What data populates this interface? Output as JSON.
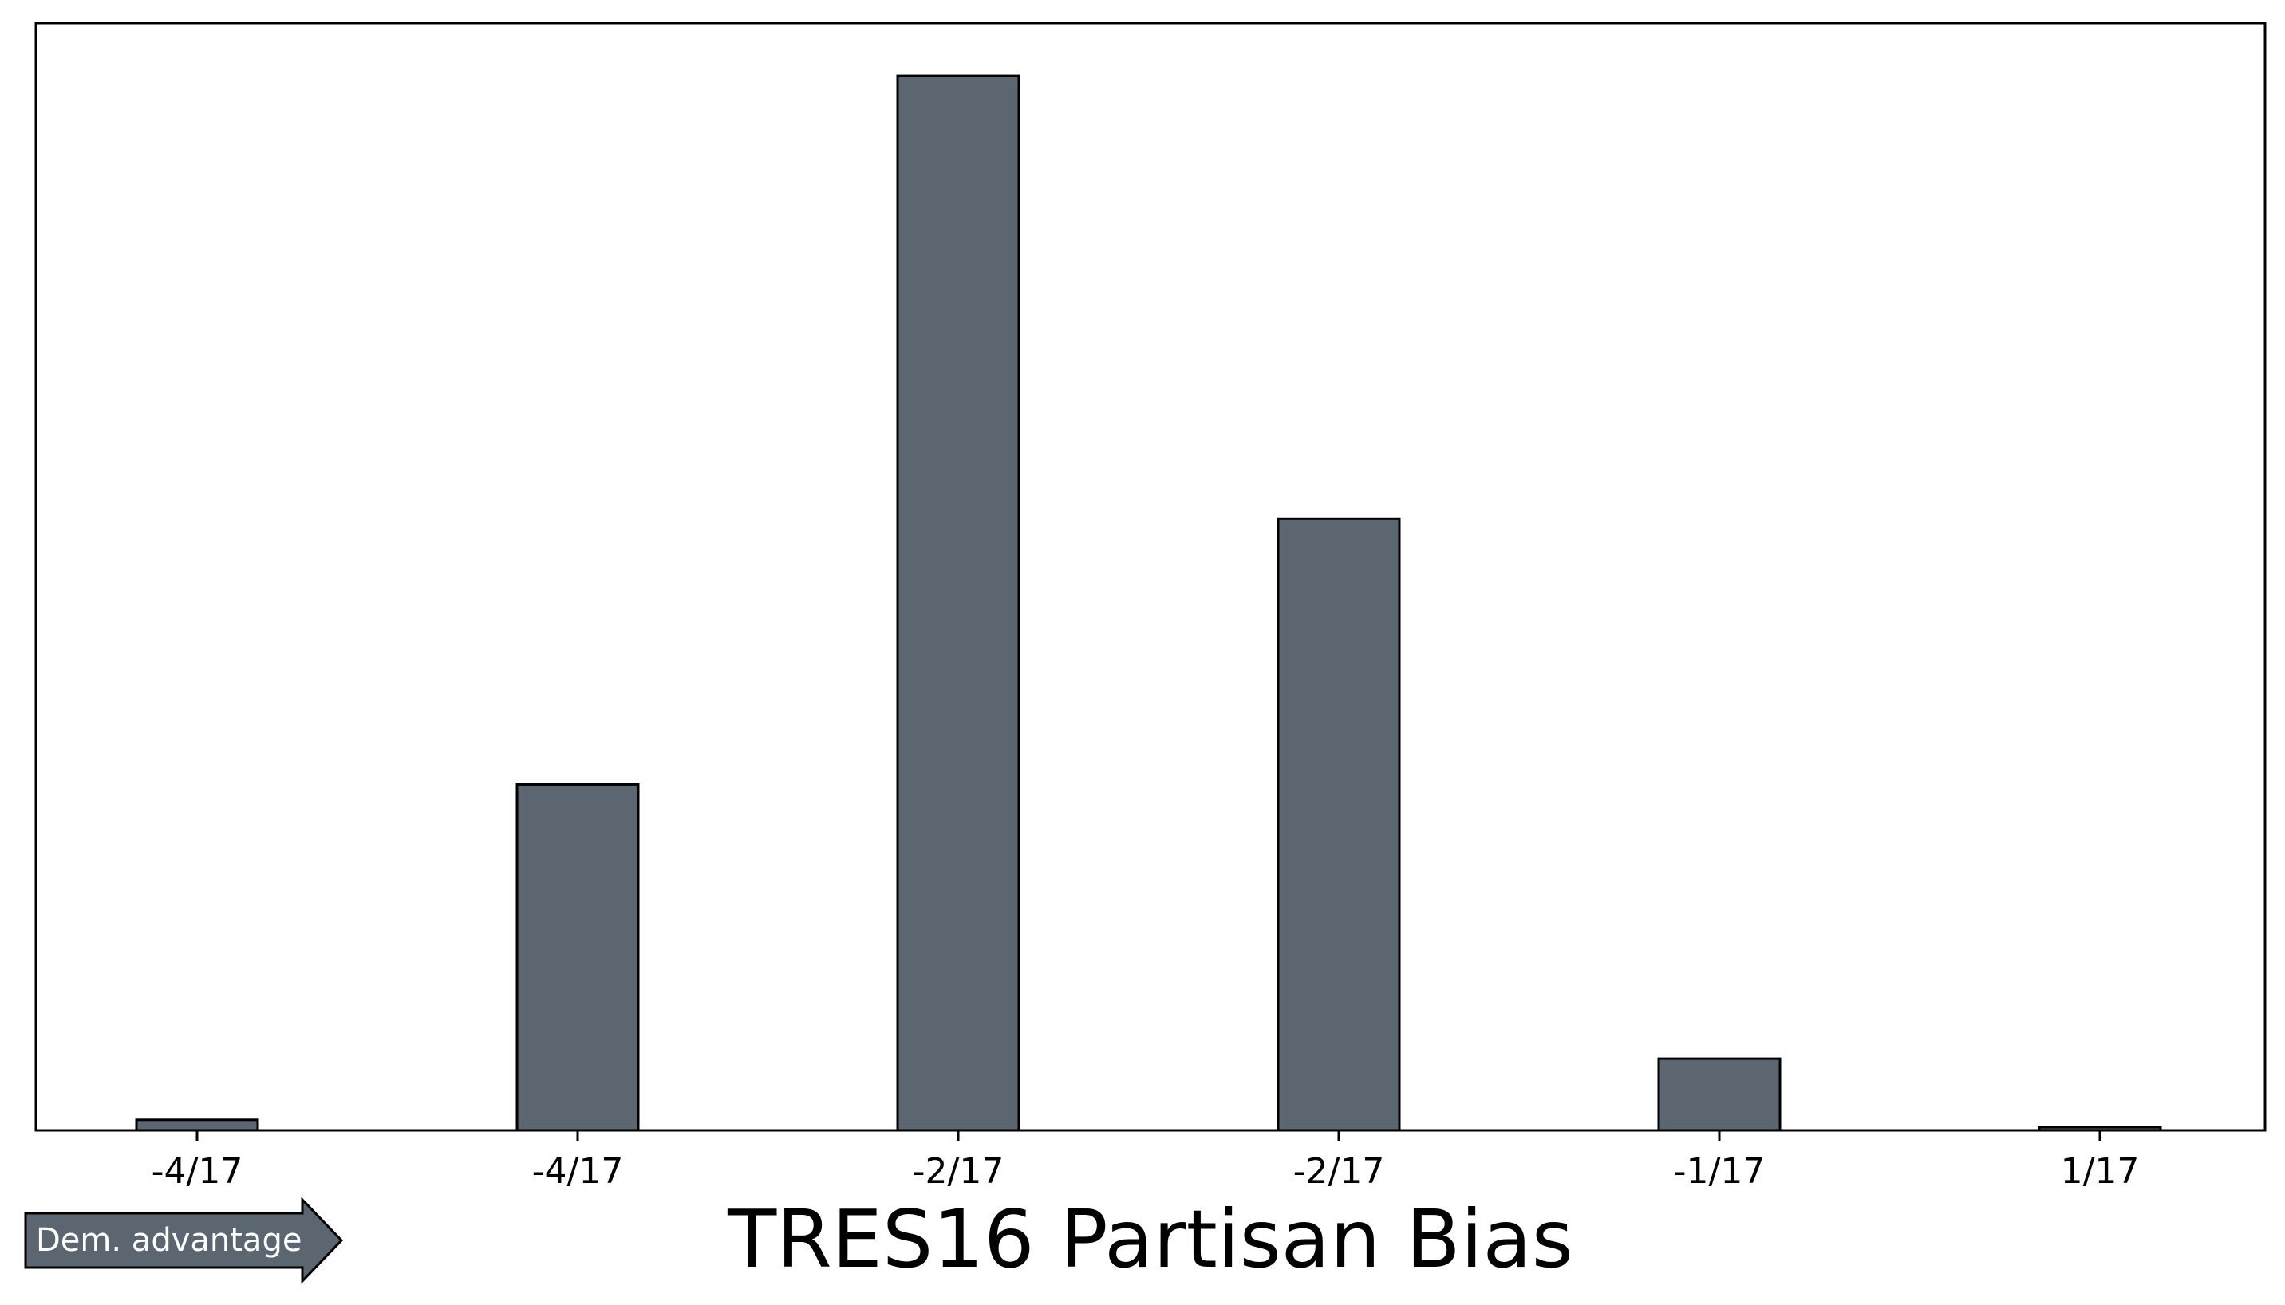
{
  "chart_data": {
    "type": "bar",
    "title": "TRES16 Partisan Bias",
    "xlabel": "",
    "ylabel": "",
    "ylim": [
      0,
      1.05
    ],
    "bar_color": "#5c6670",
    "edge_color": "#000000",
    "x_ticks": [
      "-4/17",
      "-4/17",
      "-2/17",
      "-2/17",
      "-1/17",
      "1/17"
    ],
    "bars": [
      {
        "value": 0.01
      },
      {
        "value": 0.0
      },
      {
        "value": 0.328
      },
      {
        "value": 0.0
      },
      {
        "value": 1.0
      },
      {
        "value": 0.0
      },
      {
        "value": 0.58
      },
      {
        "value": 0.0
      },
      {
        "value": 0.068
      },
      {
        "value": 0.0
      },
      {
        "value": 0.003
      }
    ],
    "grid": false,
    "y_tick_labels_shown": false
  },
  "annotation": {
    "arrow_label": "Dem. advantage",
    "arrow_color": "#5c6670"
  }
}
